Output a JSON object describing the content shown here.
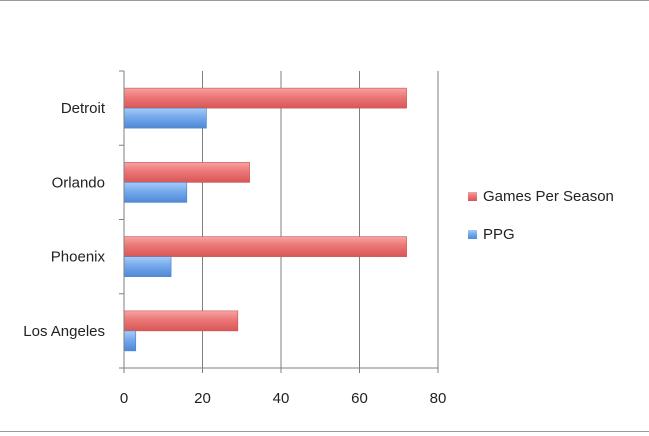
{
  "chart_data": {
    "type": "bar",
    "orientation": "horizontal",
    "categories": [
      "Detroit",
      "Orlando",
      "Phoenix",
      "Los Angeles"
    ],
    "series": [
      {
        "name": "Games Per Season",
        "values": [
          72,
          32,
          72,
          29
        ],
        "color": "#e96f6f"
      },
      {
        "name": "PPG",
        "values": [
          21,
          16,
          12,
          3
        ],
        "color": "#6aa3ea"
      }
    ],
    "xticks": [
      "0",
      "20",
      "40",
      "60",
      "80"
    ],
    "xlim": [
      0,
      80
    ],
    "grid": true,
    "legend_position": "right"
  }
}
